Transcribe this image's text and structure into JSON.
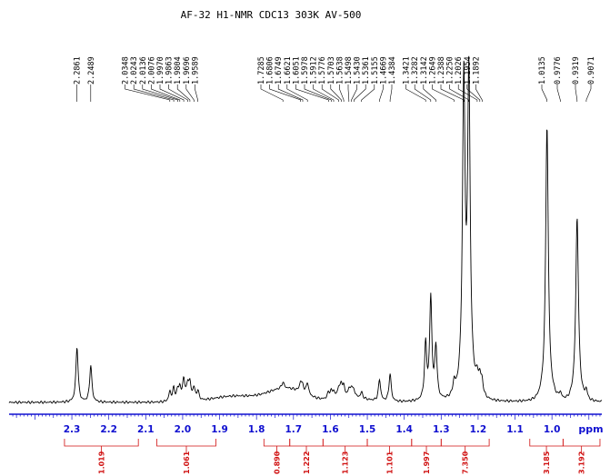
{
  "header": {
    "title": "AF-32   H1-NMR   CDC13   303K  AV-500"
  },
  "chart_data": {
    "type": "line",
    "title": "AF-32   H1-NMR   CDC13   303K  AV-500",
    "xlabel": "ppm",
    "xlim": [
      2.47,
      0.865
    ],
    "x_reversed": true,
    "grid": false,
    "x_ticks": [
      "2.3",
      "2.2",
      "2.1",
      "2.0",
      "1.9",
      "1.8",
      "1.7",
      "1.6",
      "1.5",
      "1.4",
      "1.3",
      "1.2",
      "1.1",
      "1.0"
    ],
    "peak_labels": [
      "2.2861",
      "2.2489",
      "2.0348",
      "2.0243",
      "2.0136",
      "2.0076",
      "1.9970",
      "1.9863",
      "1.9804",
      "1.9696",
      "1.9589",
      "1.7285",
      "1.6806",
      "1.6749",
      "1.6621",
      "1.6051",
      "1.5978",
      "1.5912",
      "1.5776",
      "1.5703",
      "1.5638",
      "1.5498",
      "1.5430",
      "1.5361",
      "1.5155",
      "1.4669",
      "1.4384",
      "1.3421",
      "1.3282",
      "1.3142",
      "1.2649",
      "1.2388",
      "1.2250",
      "1.2026",
      "1.1954",
      "1.1892",
      "1.0135",
      "0.9776",
      "0.9319",
      "0.9071"
    ],
    "spectrum_peaks": [
      {
        "ppm": 2.2861,
        "height": 0.18
      },
      {
        "ppm": 2.2489,
        "height": 0.12
      },
      {
        "ppm": 2.0348,
        "height": 0.03
      },
      {
        "ppm": 2.0243,
        "height": 0.04
      },
      {
        "ppm": 2.0136,
        "height": 0.03
      },
      {
        "ppm": 2.0076,
        "height": 0.04
      },
      {
        "ppm": 1.997,
        "height": 0.07
      },
      {
        "ppm": 1.9863,
        "height": 0.05
      },
      {
        "ppm": 1.9804,
        "height": 0.05
      },
      {
        "ppm": 1.9696,
        "height": 0.04
      },
      {
        "ppm": 1.9589,
        "height": 0.03
      },
      {
        "ppm": 1.7285,
        "height": 0.02
      },
      {
        "ppm": 1.6806,
        "height": 0.03
      },
      {
        "ppm": 1.6749,
        "height": 0.02
      },
      {
        "ppm": 1.6621,
        "height": 0.04
      },
      {
        "ppm": 1.6051,
        "height": 0.02
      },
      {
        "ppm": 1.5978,
        "height": 0.02
      },
      {
        "ppm": 1.5912,
        "height": 0.02
      },
      {
        "ppm": 1.5776,
        "height": 0.03
      },
      {
        "ppm": 1.5703,
        "height": 0.04
      },
      {
        "ppm": 1.5638,
        "height": 0.03
      },
      {
        "ppm": 1.5498,
        "height": 0.02
      },
      {
        "ppm": 1.543,
        "height": 0.03
      },
      {
        "ppm": 1.5361,
        "height": 0.02
      },
      {
        "ppm": 1.5155,
        "height": 0.02
      },
      {
        "ppm": 1.4669,
        "height": 0.07
      },
      {
        "ppm": 1.4384,
        "height": 0.09
      },
      {
        "ppm": 1.3421,
        "height": 0.18
      },
      {
        "ppm": 1.3282,
        "height": 0.33
      },
      {
        "ppm": 1.3142,
        "height": 0.17
      },
      {
        "ppm": 1.2649,
        "height": 0.04
      },
      {
        "ppm": 1.2388,
        "height": 0.99
      },
      {
        "ppm": 1.225,
        "height": 1.0
      },
      {
        "ppm": 1.2026,
        "height": 0.04
      },
      {
        "ppm": 1.1954,
        "height": 0.05
      },
      {
        "ppm": 1.1892,
        "height": 0.04
      },
      {
        "ppm": 1.0135,
        "height": 0.87
      },
      {
        "ppm": 0.9776,
        "height": 0.02
      },
      {
        "ppm": 0.9319,
        "height": 0.57
      },
      {
        "ppm": 0.9071,
        "height": 0.03
      }
    ],
    "integrals": [
      {
        "from": 2.32,
        "to": 2.12,
        "value": "1.019"
      },
      {
        "from": 2.07,
        "to": 1.91,
        "value": "1.061"
      },
      {
        "from": 1.78,
        "to": 1.71,
        "value": "0.890"
      },
      {
        "from": 1.71,
        "to": 1.62,
        "value": "1.222"
      },
      {
        "from": 1.62,
        "to": 1.5,
        "value": "1.123"
      },
      {
        "from": 1.5,
        "to": 1.38,
        "value": "1.101"
      },
      {
        "from": 1.38,
        "to": 1.3,
        "value": "1.997"
      },
      {
        "from": 1.3,
        "to": 1.17,
        "value": "7.350"
      },
      {
        "from": 1.06,
        "to": 0.97,
        "value": "3.185"
      },
      {
        "from": 0.97,
        "to": 0.87,
        "value": "3.192"
      }
    ],
    "colors": {
      "spectrum": "#000000",
      "axis": "#1010d0",
      "integral": "#d01010"
    }
  }
}
